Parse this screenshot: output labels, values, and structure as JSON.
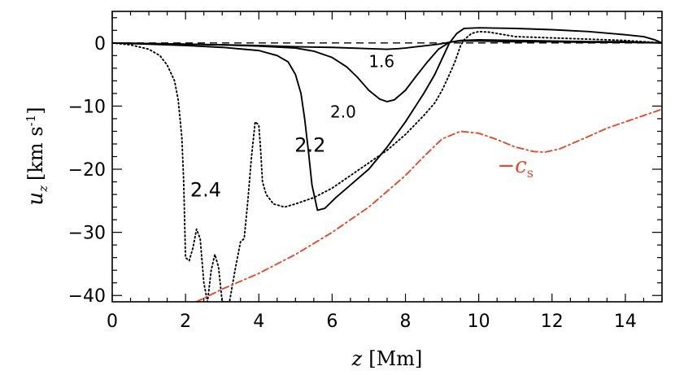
{
  "chart_data": {
    "type": "line",
    "xlabel_var": "z",
    "xlabel_unit": "[Mm]",
    "ylabel_var": "u",
    "ylabel_sub": "z",
    "ylabel_unit": "[km s",
    "ylabel_exp": "-1",
    "ylabel_close": "]",
    "xlim": [
      0,
      15
    ],
    "ylim": [
      -41,
      5
    ],
    "xticks": [
      0,
      2,
      4,
      6,
      8,
      10,
      12,
      14
    ],
    "xtick_labels": [
      "0",
      "2",
      "4",
      "6",
      "8",
      "10",
      "12",
      "14"
    ],
    "yticks": [
      0,
      -10,
      -20,
      -30,
      -40
    ],
    "ytick_labels": [
      "0",
      "−10",
      "−20",
      "−30",
      "−40"
    ],
    "grid": false,
    "legend": "none",
    "series": [
      {
        "id": "1.6",
        "style": "solid",
        "color": "#000000",
        "x": [
          0,
          1,
          2,
          3,
          4,
          5,
          5.5,
          6,
          6.4,
          6.7,
          7.0,
          7.3,
          7.5,
          7.7,
          8.0,
          8.3,
          8.6,
          8.9,
          9.2,
          9.5,
          10,
          11,
          12,
          13,
          14,
          14.5,
          15
        ],
        "y": [
          0,
          -0.1,
          -0.2,
          -0.3,
          -0.5,
          -0.8,
          -1.3,
          -2.3,
          -3.8,
          -5.5,
          -7.5,
          -8.9,
          -9.3,
          -9.0,
          -7.5,
          -5.2,
          -3.0,
          -1.0,
          0.1,
          0.4,
          0.5,
          0.4,
          0.3,
          0.2,
          0.2,
          0.1,
          0
        ]
      },
      {
        "id": "2.0",
        "style": "solid",
        "color": "#000000",
        "x": [
          0,
          1,
          2,
          3,
          4,
          4.5,
          4.8,
          5.0,
          5.15,
          5.25,
          5.35,
          5.45,
          5.6,
          5.8,
          6.1,
          6.5,
          7.0,
          7.5,
          8.0,
          8.5,
          8.8,
          9.0,
          9.2,
          9.4,
          9.6,
          10,
          11,
          12,
          13,
          14,
          14.5,
          14.8,
          15
        ],
        "y": [
          0,
          -0.2,
          -0.4,
          -0.7,
          -1.2,
          -2.0,
          -3.0,
          -5.0,
          -8.0,
          -12.0,
          -17.0,
          -22.5,
          -26.5,
          -26.2,
          -24.5,
          -22.5,
          -20.0,
          -16.5,
          -12.5,
          -8.0,
          -5.0,
          -2.5,
          0.0,
          1.5,
          2.3,
          2.4,
          2.3,
          2.1,
          1.8,
          1.3,
          1.0,
          0.5,
          0
        ]
      },
      {
        "id": "2.2",
        "style": "solid",
        "color": "#000000",
        "x": [
          0,
          1,
          2,
          3,
          4,
          5,
          6,
          7,
          7.5,
          7.8,
          8.0,
          8.3,
          8.6,
          8.9,
          9.1,
          9.3,
          9.5,
          10,
          11,
          12,
          13,
          14,
          15
        ],
        "y": [
          0,
          -0.1,
          -0.2,
          -0.3,
          -0.4,
          -0.6,
          -0.7,
          -0.9,
          -1.0,
          -0.9,
          -0.8,
          -0.6,
          -0.4,
          -0.2,
          0.0,
          0.2,
          0.3,
          0.3,
          0.2,
          0.2,
          0.1,
          0.1,
          0
        ]
      },
      {
        "id": "2.4",
        "style": "dotted",
        "color": "#000000",
        "x": [
          0,
          0.5,
          1.0,
          1.3,
          1.5,
          1.7,
          1.8,
          1.9,
          1.95,
          2.0,
          2.1,
          2.2,
          2.3,
          2.4,
          2.5,
          2.6,
          2.7,
          2.8,
          2.9,
          3.0,
          3.1,
          3.2,
          3.35,
          3.5,
          3.6,
          3.7,
          3.8,
          3.9,
          4.0,
          4.05,
          4.1,
          4.2,
          4.4,
          4.7,
          5.0,
          5.5,
          6.0,
          6.5,
          7.0,
          7.5,
          8.0,
          8.5,
          8.8,
          9.0,
          9.2,
          9.35,
          9.5,
          9.6,
          9.8,
          10.0,
          10.3,
          11,
          12,
          13,
          14,
          14.5,
          14.8,
          15
        ],
        "y": [
          0,
          -0.3,
          -1.0,
          -2.0,
          -3.5,
          -6.0,
          -9.0,
          -15.0,
          -22.0,
          -34.0,
          -34.5,
          -32.5,
          -29.5,
          -31.0,
          -38.0,
          -41.0,
          -36.0,
          -33.5,
          -35.5,
          -41.0,
          -41.0,
          -41.0,
          -36.0,
          -31.5,
          -31.0,
          -25.0,
          -18.0,
          -12.5,
          -13.0,
          -17.0,
          -22.0,
          -24.0,
          -25.5,
          -26.0,
          -25.5,
          -24.5,
          -23.0,
          -21.0,
          -19.0,
          -17.0,
          -14.5,
          -11.5,
          -9.5,
          -7.5,
          -5.0,
          -3.0,
          -0.5,
          0.5,
          1.5,
          1.8,
          1.7,
          1.0,
          0.8,
          0.6,
          0.4,
          0.2,
          0.1,
          0
        ]
      },
      {
        "id": "-c_s",
        "style": "dashdot",
        "color": "#e8492a",
        "x": [
          2.3,
          3,
          4,
          5,
          6,
          7,
          8,
          8.5,
          9.0,
          9.5,
          10.0,
          10.5,
          11.0,
          11.5,
          11.8,
          12.2,
          12.6,
          13,
          13.5,
          14,
          14.5,
          15
        ],
        "y": [
          -41.0,
          -39.0,
          -36.5,
          -33.5,
          -30.0,
          -26.0,
          -21.0,
          -18.0,
          -15.2,
          -14.0,
          -14.3,
          -15.3,
          -16.5,
          -17.2,
          -17.3,
          -16.8,
          -15.8,
          -14.8,
          -13.5,
          -12.5,
          -11.5,
          -10.5
        ]
      }
    ],
    "reference_lines": [
      {
        "y": 0,
        "style": "dashed",
        "color": "#000000"
      }
    ],
    "annotations": [
      {
        "text": "1.6",
        "x": 7.35,
        "y": -3.8,
        "size": 20,
        "color": "#000000"
      },
      {
        "text": "2.0",
        "x": 6.3,
        "y": -11.8,
        "size": 20,
        "color": "#000000"
      },
      {
        "text": "2.2",
        "x": 5.4,
        "y": -17.2,
        "size": 24,
        "color": "#000000"
      },
      {
        "text": "2.4",
        "x": 2.55,
        "y": -24.3,
        "size": 24,
        "color": "#000000"
      }
    ],
    "cs_label": {
      "sign": "−",
      "var": "c",
      "sub": "s",
      "x": 11.0,
      "y": -20.5,
      "color": "#e8492a"
    }
  }
}
